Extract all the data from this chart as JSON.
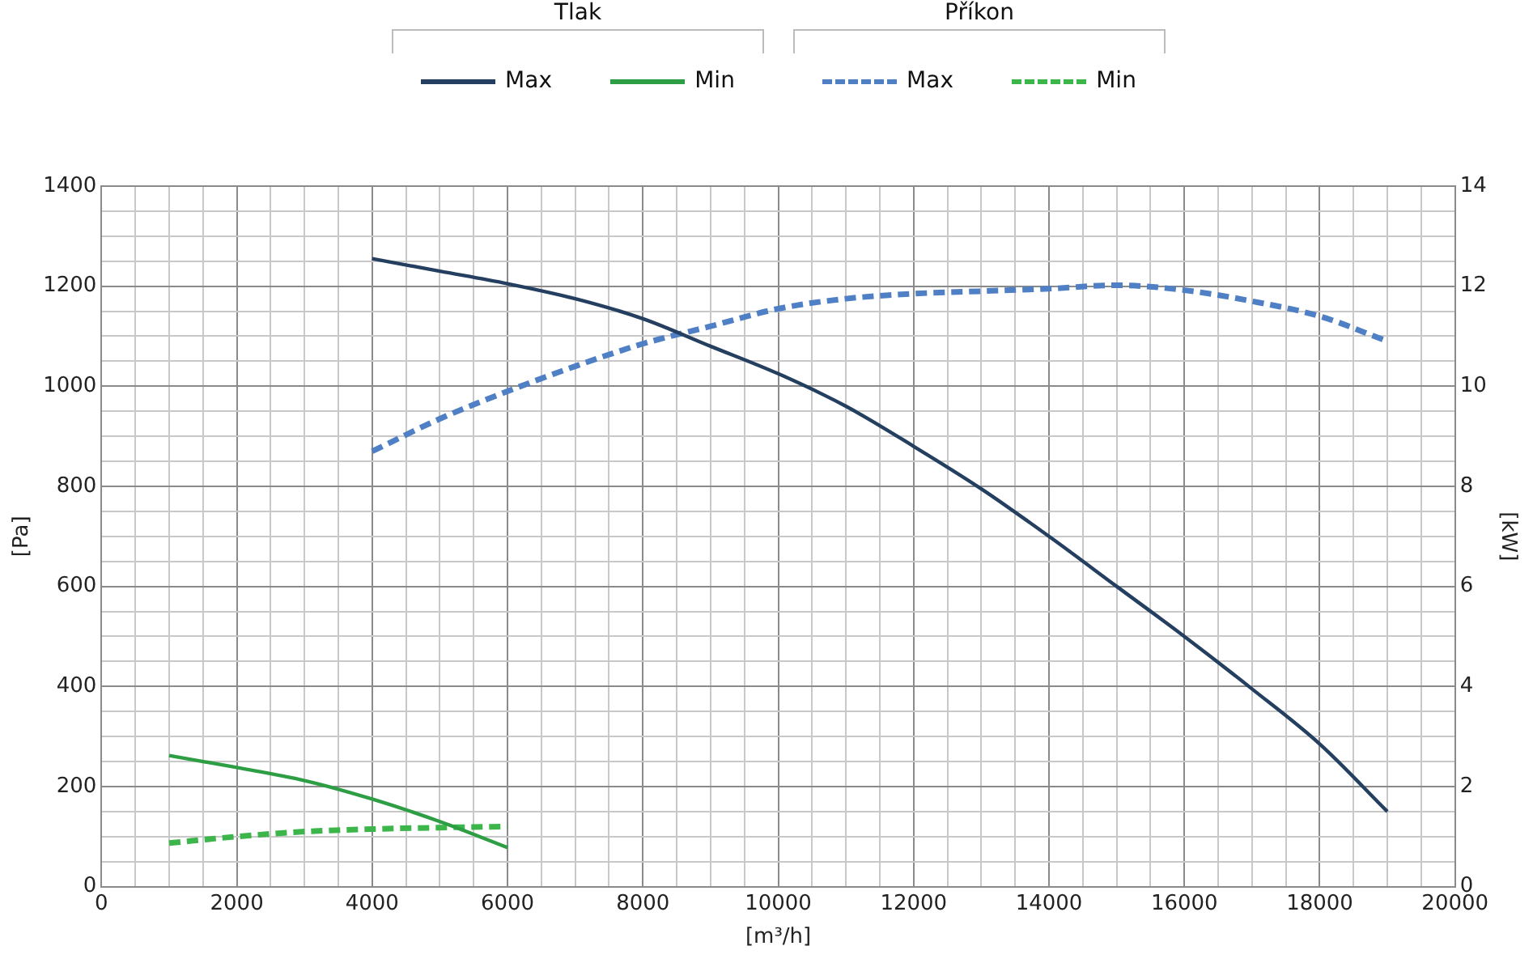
{
  "chart_data": {
    "type": "line",
    "xlabel": "[m³/h]",
    "ylabel": "[Pa]",
    "y2label": "[kW]",
    "legend": "top",
    "grid": true,
    "marker": "none",
    "annotations": [
      "Tlak",
      "Příkon"
    ],
    "xlim": [
      0,
      20000
    ],
    "ylim": [
      0,
      1400
    ],
    "y2lim": [
      0,
      14
    ],
    "xticks": [
      0,
      {
        "value": 500,
        "label": null
      },
      {
        "value": 1000,
        "label": null
      },
      {
        "value": 1500,
        "label": null
      },
      2000,
      {
        "value": 2500,
        "label": null
      },
      {
        "value": 3000,
        "label": null
      },
      {
        "value": 3500,
        "label": null
      },
      4000,
      {
        "value": 4500,
        "label": null
      },
      {
        "value": 5000,
        "label": null
      },
      {
        "value": 5500,
        "label": null
      },
      6000,
      {
        "value": 6500,
        "label": null
      },
      {
        "value": 7000,
        "label": null
      },
      {
        "value": 7500,
        "label": null
      },
      8000,
      {
        "value": 8500,
        "label": null
      },
      {
        "value": 9000,
        "label": null
      },
      {
        "value": 9500,
        "label": null
      },
      10000,
      {
        "value": 10500,
        "label": null
      },
      {
        "value": 11000,
        "label": null
      },
      {
        "value": 11500,
        "label": null
      },
      12000,
      {
        "value": 12500,
        "label": null
      },
      {
        "value": 13000,
        "label": null
      },
      {
        "value": 13500,
        "label": null
      },
      14000,
      {
        "value": 14500,
        "label": null
      },
      {
        "value": 15000,
        "label": null
      },
      {
        "value": 15500,
        "label": null
      },
      16000,
      {
        "value": 16500,
        "label": null
      },
      {
        "value": 17000,
        "label": null
      },
      {
        "value": 17500,
        "label": null
      },
      18000,
      {
        "value": 18500,
        "label": null
      },
      {
        "value": 19000,
        "label": null
      },
      {
        "value": 19500,
        "label": null
      },
      20000
    ],
    "yticks": [
      0,
      {
        "value": 50,
        "label": null
      },
      {
        "value": 100,
        "label": null
      },
      {
        "value": 150,
        "label": null
      },
      200,
      {
        "value": 250,
        "label": null
      },
      {
        "value": 300,
        "label": null
      },
      {
        "value": 350,
        "label": null
      },
      400,
      {
        "value": 450,
        "label": null
      },
      {
        "value": 500,
        "label": null
      },
      {
        "value": 550,
        "label": null
      },
      600,
      {
        "value": 650,
        "label": null
      },
      {
        "value": 700,
        "label": null
      },
      {
        "value": 750,
        "label": null
      },
      800,
      {
        "value": 850,
        "label": null
      },
      {
        "value": 900,
        "label": null
      },
      {
        "value": 950,
        "label": null
      },
      1000,
      {
        "value": 1050,
        "label": null
      },
      {
        "value": 1100,
        "label": null
      },
      {
        "value": 1150,
        "label": null
      },
      1200,
      {
        "value": 1250,
        "label": null
      },
      {
        "value": 1300,
        "label": null
      },
      {
        "value": 1350,
        "label": null
      },
      1400
    ],
    "y2ticks": [
      0,
      2,
      4,
      6,
      8,
      10,
      12,
      14
    ],
    "series": [
      {
        "name": "Max",
        "color": "#243f60",
        "axis": "y",
        "line_style": "solid",
        "x": [
          4000,
          5000,
          6000,
          7000,
          8000,
          9000,
          10000,
          11000,
          12000,
          13000,
          14000,
          15000,
          16000,
          17000,
          18000,
          19000
        ],
        "values": [
          1255,
          1230,
          1205,
          1175,
          1135,
          1080,
          1025,
          960,
          880,
          795,
          700,
          600,
          500,
          395,
          285,
          150
        ]
      },
      {
        "name": "Min",
        "color": "#2e9e44",
        "axis": "y",
        "line_style": "solid",
        "x": [
          1000,
          2000,
          3000,
          4000,
          5000,
          6000
        ],
        "values": [
          262,
          238,
          212,
          175,
          130,
          78
        ]
      },
      {
        "name": "Max",
        "color": "#4f7fc4",
        "axis": "y2",
        "line_style": "dashed",
        "x": [
          4000,
          5000,
          6000,
          7000,
          8000,
          9000,
          10000,
          11000,
          12000,
          13000,
          14000,
          15000,
          16000,
          17000,
          18000,
          19000
        ],
        "values": [
          8.7,
          9.35,
          9.9,
          10.4,
          10.85,
          11.2,
          11.55,
          11.75,
          11.85,
          11.9,
          11.95,
          12.02,
          11.92,
          11.7,
          11.4,
          10.9
        ]
      },
      {
        "name": "Min",
        "color": "#3cb54a",
        "axis": "y2",
        "line_style": "dashed",
        "x": [
          1000,
          2000,
          3000,
          4000,
          5000,
          6000
        ],
        "values": [
          0.87,
          1.0,
          1.1,
          1.15,
          1.18,
          1.2
        ]
      }
    ]
  }
}
